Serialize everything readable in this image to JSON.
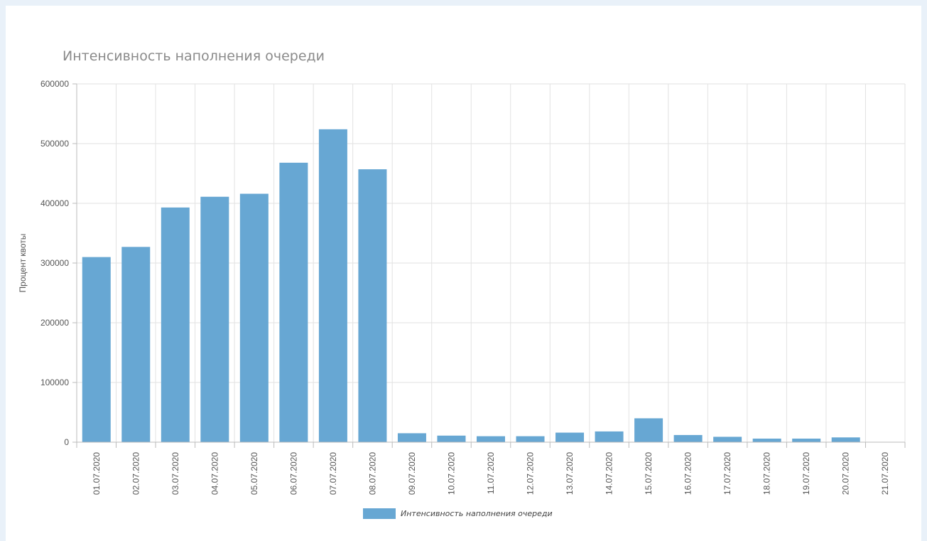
{
  "chart_data": {
    "type": "bar",
    "title": "Интенсивность наполнения очереди",
    "ylabel": "Процент квоты",
    "xlabel": "",
    "ylim": [
      0,
      600000
    ],
    "yticks": [
      0,
      100000,
      200000,
      300000,
      400000,
      500000,
      600000
    ],
    "ytick_labels": [
      "0",
      "100000",
      "200000",
      "300000",
      "400000",
      "500000",
      "600000"
    ],
    "grid": true,
    "legend_position": "bottom",
    "categories": [
      "01.07.2020",
      "02.07.2020",
      "03.07.2020",
      "04.07.2020",
      "05.07.2020",
      "06.07.2020",
      "07.07.2020",
      "08.07.2020",
      "09.07.2020",
      "10.07.2020",
      "11.07.2020",
      "12.07.2020",
      "13.07.2020",
      "14.07.2020",
      "15.07.2020",
      "16.07.2020",
      "17.07.2020",
      "18.07.2020",
      "19.07.2020",
      "20.07.2020",
      "21.07.2020"
    ],
    "series": [
      {
        "name": "Интенсивность наполнения очереди",
        "color": "#67a7d3",
        "values": [
          310000,
          327000,
          393000,
          411000,
          416000,
          468000,
          524000,
          457000,
          15000,
          11000,
          10000,
          10000,
          16000,
          18000,
          40000,
          12000,
          9000,
          6000,
          6000,
          8000,
          0
        ]
      }
    ]
  }
}
